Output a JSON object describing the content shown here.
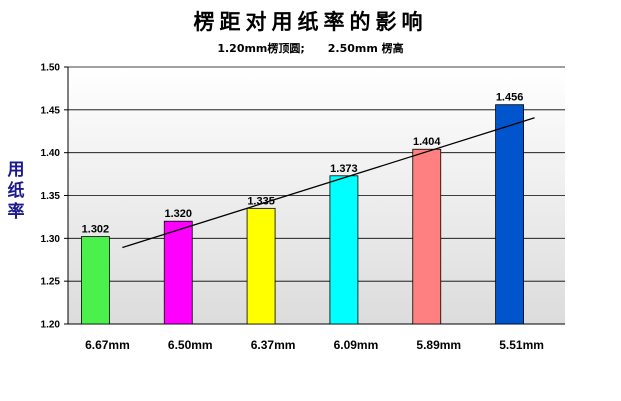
{
  "chart_data": {
    "type": "bar",
    "title": "楞距对用纸率的影响",
    "subtitle": "1.20mm楞顶圆;      2.50mm 楞高",
    "xlabel": "",
    "ylabel": "用纸率",
    "categories": [
      "6.67mm",
      "6.50mm",
      "6.37mm",
      "6.09mm",
      "5.89mm",
      "5.51mm"
    ],
    "values": [
      1.302,
      1.32,
      1.335,
      1.373,
      1.404,
      1.456
    ],
    "data_labels": [
      "1.302",
      "1.320",
      "1.335",
      "1.373",
      "1.404",
      "1.456"
    ],
    "bar_colors": [
      "#4cf04c",
      "#ff00ff",
      "#ffff00",
      "#00ffff",
      "#ff8080",
      "#0055cc"
    ],
    "ylim": [
      1.2,
      1.5
    ],
    "yticks": [
      "1.20",
      "1.25",
      "1.30",
      "1.35",
      "1.40",
      "1.45",
      "1.50"
    ],
    "grid": true,
    "trendline": {
      "type": "linear",
      "color": "#000000"
    },
    "legend": "none"
  }
}
